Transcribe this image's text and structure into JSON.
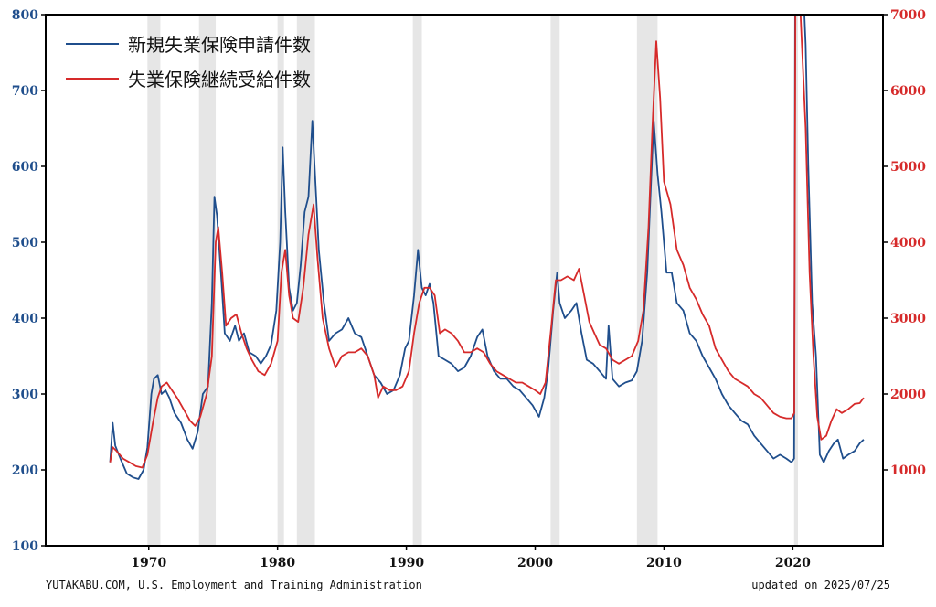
{
  "chart_data": {
    "type": "line",
    "xlim": [
      1962,
      2027
    ],
    "x_ticks": [
      1970,
      1980,
      1990,
      2000,
      2010,
      2020
    ],
    "y_left": {
      "ylim": [
        100,
        800
      ],
      "ticks": [
        100,
        200,
        300,
        400,
        500,
        600,
        700,
        800
      ],
      "color": "#1f4e8c"
    },
    "y_right": {
      "ylim": [
        0,
        7000
      ],
      "ticks": [
        1000,
        2000,
        3000,
        4000,
        5000,
        6000,
        7000
      ],
      "color": "#d62a2a"
    },
    "grid": false,
    "legend_position": "top-left",
    "recessions": [
      [
        1969.9,
        1970.9
      ],
      [
        1973.9,
        1975.2
      ],
      [
        1980.0,
        1980.5
      ],
      [
        1981.5,
        1982.9
      ],
      [
        1990.5,
        1991.2
      ],
      [
        2001.2,
        2001.9
      ],
      [
        2007.9,
        2009.5
      ],
      [
        2020.1,
        2020.4
      ]
    ],
    "series": [
      {
        "name": "新規失業保険申請件数",
        "axis": "left",
        "color": "#1f4e8c",
        "points": [
          [
            1967.0,
            210
          ],
          [
            1967.2,
            262
          ],
          [
            1967.4,
            232
          ],
          [
            1967.8,
            215
          ],
          [
            1968.3,
            195
          ],
          [
            1968.8,
            190
          ],
          [
            1969.2,
            188
          ],
          [
            1969.6,
            200
          ],
          [
            1969.9,
            230
          ],
          [
            1970.2,
            300
          ],
          [
            1970.4,
            320
          ],
          [
            1970.7,
            325
          ],
          [
            1971.0,
            300
          ],
          [
            1971.3,
            305
          ],
          [
            1971.6,
            295
          ],
          [
            1972.0,
            275
          ],
          [
            1972.5,
            262
          ],
          [
            1973.0,
            240
          ],
          [
            1973.4,
            228
          ],
          [
            1973.8,
            250
          ],
          [
            1974.2,
            300
          ],
          [
            1974.6,
            310
          ],
          [
            1974.9,
            420
          ],
          [
            1975.1,
            560
          ],
          [
            1975.3,
            535
          ],
          [
            1975.6,
            460
          ],
          [
            1975.9,
            380
          ],
          [
            1976.3,
            370
          ],
          [
            1976.7,
            390
          ],
          [
            1977.0,
            370
          ],
          [
            1977.4,
            380
          ],
          [
            1977.8,
            355
          ],
          [
            1978.3,
            350
          ],
          [
            1978.7,
            340
          ],
          [
            1979.1,
            350
          ],
          [
            1979.5,
            365
          ],
          [
            1979.9,
            410
          ],
          [
            1980.2,
            500
          ],
          [
            1980.4,
            625
          ],
          [
            1980.6,
            540
          ],
          [
            1980.9,
            440
          ],
          [
            1981.2,
            410
          ],
          [
            1981.5,
            420
          ],
          [
            1981.8,
            470
          ],
          [
            1982.1,
            540
          ],
          [
            1982.4,
            560
          ],
          [
            1982.7,
            660
          ],
          [
            1983.0,
            560
          ],
          [
            1983.2,
            490
          ],
          [
            1983.6,
            420
          ],
          [
            1984.0,
            370
          ],
          [
            1984.5,
            380
          ],
          [
            1985.0,
            385
          ],
          [
            1985.5,
            400
          ],
          [
            1986.0,
            380
          ],
          [
            1986.5,
            375
          ],
          [
            1987.0,
            350
          ],
          [
            1987.5,
            325
          ],
          [
            1988.0,
            315
          ],
          [
            1988.5,
            300
          ],
          [
            1989.0,
            305
          ],
          [
            1989.5,
            325
          ],
          [
            1989.9,
            360
          ],
          [
            1990.2,
            370
          ],
          [
            1990.6,
            430
          ],
          [
            1990.9,
            490
          ],
          [
            1991.2,
            440
          ],
          [
            1991.5,
            430
          ],
          [
            1991.8,
            445
          ],
          [
            1992.1,
            420
          ],
          [
            1992.5,
            350
          ],
          [
            1993.0,
            345
          ],
          [
            1993.5,
            340
          ],
          [
            1994.0,
            330
          ],
          [
            1994.5,
            335
          ],
          [
            1995.0,
            350
          ],
          [
            1995.5,
            375
          ],
          [
            1995.9,
            385
          ],
          [
            1996.3,
            350
          ],
          [
            1996.8,
            330
          ],
          [
            1997.3,
            320
          ],
          [
            1997.8,
            320
          ],
          [
            1998.3,
            310
          ],
          [
            1998.8,
            305
          ],
          [
            1999.3,
            295
          ],
          [
            1999.8,
            285
          ],
          [
            2000.3,
            270
          ],
          [
            2000.7,
            295
          ],
          [
            2001.0,
            330
          ],
          [
            2001.4,
            410
          ],
          [
            2001.7,
            460
          ],
          [
            2001.9,
            420
          ],
          [
            2002.3,
            400
          ],
          [
            2002.8,
            410
          ],
          [
            2003.2,
            420
          ],
          [
            2003.6,
            380
          ],
          [
            2004.0,
            345
          ],
          [
            2004.5,
            340
          ],
          [
            2005.0,
            330
          ],
          [
            2005.5,
            320
          ],
          [
            2005.7,
            390
          ],
          [
            2006.0,
            320
          ],
          [
            2006.5,
            310
          ],
          [
            2007.0,
            315
          ],
          [
            2007.5,
            318
          ],
          [
            2007.9,
            330
          ],
          [
            2008.3,
            370
          ],
          [
            2008.7,
            460
          ],
          [
            2009.0,
            580
          ],
          [
            2009.2,
            660
          ],
          [
            2009.5,
            590
          ],
          [
            2009.8,
            540
          ],
          [
            2010.2,
            460
          ],
          [
            2010.6,
            460
          ],
          [
            2011.0,
            420
          ],
          [
            2011.5,
            410
          ],
          [
            2012.0,
            380
          ],
          [
            2012.5,
            370
          ],
          [
            2013.0,
            350
          ],
          [
            2013.5,
            335
          ],
          [
            2014.0,
            320
          ],
          [
            2014.5,
            300
          ],
          [
            2015.0,
            285
          ],
          [
            2015.5,
            275
          ],
          [
            2016.0,
            265
          ],
          [
            2016.5,
            260
          ],
          [
            2017.0,
            245
          ],
          [
            2017.5,
            235
          ],
          [
            2018.0,
            225
          ],
          [
            2018.5,
            215
          ],
          [
            2019.0,
            220
          ],
          [
            2019.5,
            215
          ],
          [
            2019.9,
            210
          ],
          [
            2020.1,
            215
          ],
          [
            2020.18,
            800
          ],
          [
            2020.9,
            800
          ],
          [
            2021.0,
            760
          ],
          [
            2021.2,
            600
          ],
          [
            2021.5,
            420
          ],
          [
            2021.8,
            350
          ],
          [
            2022.1,
            220
          ],
          [
            2022.4,
            210
          ],
          [
            2022.8,
            225
          ],
          [
            2023.2,
            235
          ],
          [
            2023.5,
            240
          ],
          [
            2023.9,
            215
          ],
          [
            2024.3,
            220
          ],
          [
            2024.8,
            225
          ],
          [
            2025.2,
            235
          ],
          [
            2025.5,
            240
          ]
        ]
      },
      {
        "name": "失業保険継続受給件数",
        "axis": "right",
        "color": "#d62a2a",
        "points": [
          [
            1967.0,
            1100
          ],
          [
            1967.2,
            1300
          ],
          [
            1967.5,
            1250
          ],
          [
            1968.0,
            1150
          ],
          [
            1968.5,
            1100
          ],
          [
            1969.0,
            1050
          ],
          [
            1969.5,
            1030
          ],
          [
            1969.9,
            1200
          ],
          [
            1970.3,
            1600
          ],
          [
            1970.7,
            1950
          ],
          [
            1971.0,
            2100
          ],
          [
            1971.4,
            2150
          ],
          [
            1971.8,
            2050
          ],
          [
            1972.2,
            1950
          ],
          [
            1972.7,
            1800
          ],
          [
            1973.2,
            1650
          ],
          [
            1973.6,
            1580
          ],
          [
            1974.0,
            1700
          ],
          [
            1974.5,
            2000
          ],
          [
            1974.9,
            2500
          ],
          [
            1975.2,
            4000
          ],
          [
            1975.4,
            4200
          ],
          [
            1975.7,
            3600
          ],
          [
            1976.0,
            2900
          ],
          [
            1976.4,
            3000
          ],
          [
            1976.8,
            3050
          ],
          [
            1977.2,
            2800
          ],
          [
            1977.6,
            2600
          ],
          [
            1978.0,
            2450
          ],
          [
            1978.5,
            2300
          ],
          [
            1979.0,
            2250
          ],
          [
            1979.5,
            2400
          ],
          [
            1980.0,
            2700
          ],
          [
            1980.3,
            3600
          ],
          [
            1980.6,
            3900
          ],
          [
            1980.9,
            3300
          ],
          [
            1981.2,
            3000
          ],
          [
            1981.6,
            2950
          ],
          [
            1982.0,
            3400
          ],
          [
            1982.4,
            4100
          ],
          [
            1982.8,
            4500
          ],
          [
            1983.1,
            3800
          ],
          [
            1983.5,
            3000
          ],
          [
            1984.0,
            2600
          ],
          [
            1984.5,
            2350
          ],
          [
            1985.0,
            2500
          ],
          [
            1985.5,
            2550
          ],
          [
            1986.0,
            2550
          ],
          [
            1986.5,
            2600
          ],
          [
            1987.0,
            2500
          ],
          [
            1987.5,
            2250
          ],
          [
            1987.8,
            1950
          ],
          [
            1988.2,
            2100
          ],
          [
            1988.7,
            2050
          ],
          [
            1989.2,
            2050
          ],
          [
            1989.7,
            2100
          ],
          [
            1990.2,
            2300
          ],
          [
            1990.6,
            2800
          ],
          [
            1991.0,
            3200
          ],
          [
            1991.4,
            3400
          ],
          [
            1991.8,
            3400
          ],
          [
            1992.2,
            3300
          ],
          [
            1992.6,
            2800
          ],
          [
            1993.0,
            2850
          ],
          [
            1993.5,
            2800
          ],
          [
            1994.0,
            2700
          ],
          [
            1994.5,
            2550
          ],
          [
            1995.0,
            2550
          ],
          [
            1995.5,
            2600
          ],
          [
            1996.0,
            2550
          ],
          [
            1996.5,
            2400
          ],
          [
            1997.0,
            2300
          ],
          [
            1997.5,
            2250
          ],
          [
            1998.0,
            2200
          ],
          [
            1998.5,
            2150
          ],
          [
            1999.0,
            2150
          ],
          [
            1999.5,
            2100
          ],
          [
            2000.0,
            2050
          ],
          [
            2000.4,
            2000
          ],
          [
            2000.8,
            2150
          ],
          [
            2001.2,
            2800
          ],
          [
            2001.6,
            3500
          ],
          [
            2002.0,
            3500
          ],
          [
            2002.5,
            3550
          ],
          [
            2003.0,
            3500
          ],
          [
            2003.4,
            3650
          ],
          [
            2003.8,
            3300
          ],
          [
            2004.2,
            2950
          ],
          [
            2004.6,
            2800
          ],
          [
            2005.0,
            2650
          ],
          [
            2005.5,
            2600
          ],
          [
            2006.0,
            2450
          ],
          [
            2006.5,
            2400
          ],
          [
            2007.0,
            2450
          ],
          [
            2007.5,
            2500
          ],
          [
            2008.0,
            2700
          ],
          [
            2008.4,
            3100
          ],
          [
            2008.8,
            4200
          ],
          [
            2009.1,
            5500
          ],
          [
            2009.4,
            6650
          ],
          [
            2009.7,
            5900
          ],
          [
            2010.0,
            4800
          ],
          [
            2010.5,
            4500
          ],
          [
            2011.0,
            3900
          ],
          [
            2011.5,
            3700
          ],
          [
            2012.0,
            3400
          ],
          [
            2012.5,
            3250
          ],
          [
            2013.0,
            3050
          ],
          [
            2013.5,
            2900
          ],
          [
            2014.0,
            2600
          ],
          [
            2014.5,
            2450
          ],
          [
            2015.0,
            2300
          ],
          [
            2015.5,
            2200
          ],
          [
            2016.0,
            2150
          ],
          [
            2016.5,
            2100
          ],
          [
            2017.0,
            2000
          ],
          [
            2017.5,
            1950
          ],
          [
            2018.0,
            1850
          ],
          [
            2018.5,
            1750
          ],
          [
            2019.0,
            1700
          ],
          [
            2019.5,
            1680
          ],
          [
            2019.9,
            1680
          ],
          [
            2020.12,
            1750
          ],
          [
            2020.2,
            7000
          ],
          [
            2020.6,
            7000
          ],
          [
            2021.0,
            5500
          ],
          [
            2021.3,
            3600
          ],
          [
            2021.6,
            2500
          ],
          [
            2021.9,
            1700
          ],
          [
            2022.2,
            1400
          ],
          [
            2022.6,
            1450
          ],
          [
            2023.0,
            1650
          ],
          [
            2023.4,
            1800
          ],
          [
            2023.8,
            1750
          ],
          [
            2024.3,
            1800
          ],
          [
            2024.8,
            1870
          ],
          [
            2025.2,
            1880
          ],
          [
            2025.5,
            1950
          ]
        ]
      }
    ]
  },
  "footer": {
    "source": "YUTAKABU.COM, U.S. Employment and Training Administration",
    "updated": "updated on 2025/07/25"
  }
}
